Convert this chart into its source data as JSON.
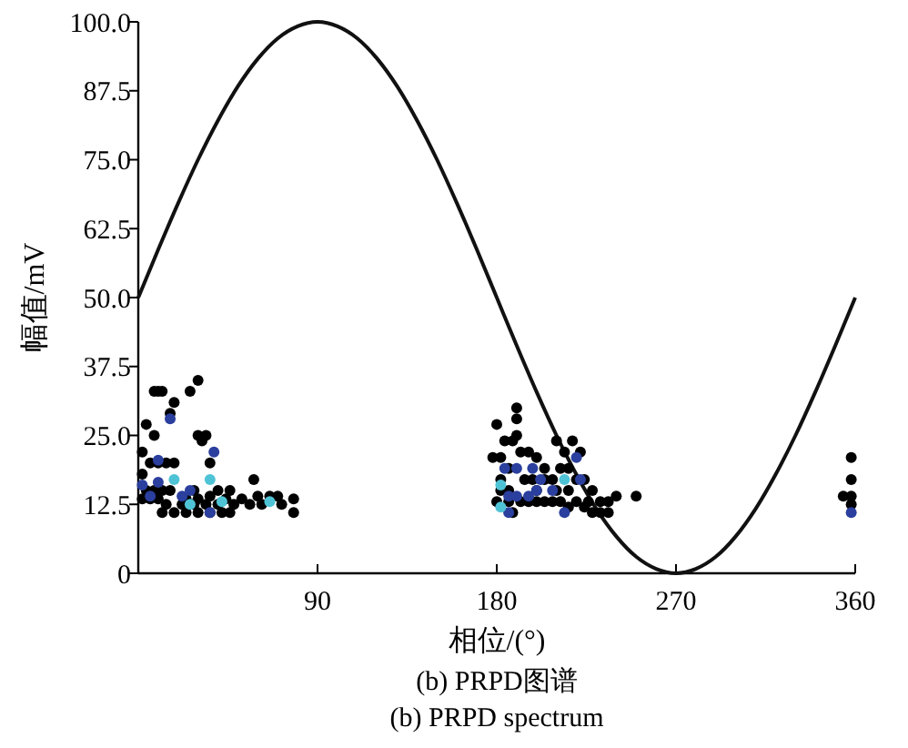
{
  "chart_data": {
    "type": "scatter",
    "xlabel": "相位/(°)",
    "ylabel": "幅值/mV",
    "annotations": [
      "(b) PRPD图谱",
      "(b) PRPD spectrum"
    ],
    "xlim": [
      0,
      360
    ],
    "xticks": [
      90,
      180,
      270,
      360
    ],
    "ylim": [
      0,
      100
    ],
    "yticks": [
      0,
      {
        "value": 12.5,
        "label": "12.5"
      },
      {
        "value": 25,
        "label": "25.0"
      },
      {
        "value": 37.5,
        "label": "37.5"
      },
      {
        "value": 50,
        "label": "50.0"
      },
      {
        "value": 62.5,
        "label": "62.5"
      },
      {
        "value": 75,
        "label": "75.0"
      },
      {
        "value": 87.5,
        "label": "87.5"
      },
      {
        "value": 100,
        "label": "100.0"
      }
    ],
    "grid": false,
    "marker": "circle",
    "series": [
      {
        "type": "line",
        "color": "#111111",
        "marker": "none",
        "x": [
          0,
          10,
          20,
          30,
          40,
          50,
          60,
          70,
          80,
          90,
          100,
          110,
          120,
          130,
          140,
          150,
          160,
          170,
          180,
          190,
          200,
          210,
          220,
          230,
          240,
          250,
          260,
          270,
          280,
          290,
          300,
          310,
          320,
          330,
          340,
          350,
          360
        ],
        "values": [
          50,
          58.7,
          67.1,
          75,
          82.1,
          88.3,
          93.3,
          97,
          99.2,
          100,
          99.2,
          97,
          93.3,
          88.3,
          82.1,
          75,
          67.1,
          58.7,
          50,
          41.3,
          32.9,
          25,
          17.9,
          11.7,
          6.7,
          3,
          0.8,
          0,
          0.8,
          3,
          6.7,
          11.7,
          17.9,
          25,
          32.9,
          41.3,
          50
        ]
      },
      {
        "color": "#000000",
        "x": [
          2,
          4,
          8,
          2,
          6,
          10,
          14,
          4,
          8,
          12,
          16,
          2,
          6,
          10,
          14,
          18,
          12,
          24,
          30,
          36,
          42,
          46,
          22,
          28,
          34,
          40,
          48,
          56,
          62,
          72,
          78,
          78,
          52,
          60,
          66,
          70,
          36,
          40,
          46,
          58,
          36,
          30,
          34,
          32,
          8,
          10,
          12,
          16,
          18,
          26,
          30,
          18,
          28,
          24,
          30,
          44,
          178,
          182,
          180,
          184,
          188,
          190,
          190,
          190,
          192,
          196,
          200,
          186,
          182,
          182,
          186,
          180,
          186,
          192,
          196,
          200,
          204,
          208,
          212,
          216,
          220,
          224,
          228,
          232,
          236,
          236,
          240,
          250,
          194,
          198,
          204,
          208,
          212,
          216,
          220,
          224,
          228,
          214,
          218,
          222,
          210,
          204,
          200,
          210,
          216,
          226,
          232,
          188,
          358,
          358,
          358,
          358,
          354
        ],
        "values": [
          22,
          27,
          25,
          18,
          20,
          20,
          20,
          15,
          15,
          15,
          15,
          13.5,
          13.5,
          13.5,
          12.5,
          11,
          11,
          11,
          11,
          11,
          11,
          11,
          12.5,
          12.5,
          12.5,
          12.5,
          12.5,
          12.5,
          12.5,
          12.5,
          11,
          13.5,
          13.5,
          14,
          14,
          14,
          14,
          15,
          15,
          17,
          20,
          25,
          25,
          24,
          33,
          33,
          33,
          29,
          31,
          33,
          35,
          20,
          15,
          13.5,
          13.5,
          13.5,
          21,
          21,
          27,
          24,
          24,
          25,
          28,
          30,
          22,
          22,
          21,
          19,
          17,
          15,
          15,
          13,
          13,
          13,
          13,
          13,
          13,
          13,
          13,
          12,
          13,
          12,
          11,
          11,
          11,
          13,
          14,
          14,
          17,
          17,
          17,
          17,
          19,
          19,
          17,
          17,
          15,
          22,
          24,
          22,
          24,
          19,
          15,
          15,
          15,
          13,
          13,
          11,
          21,
          17,
          14,
          12.5,
          14
        ]
      },
      {
        "color": "#2a3f9e",
        "x": [
          16,
          38,
          10,
          22,
          26,
          36,
          2,
          10,
          6,
          184,
          190,
          198,
          202,
          186,
          190,
          196,
          200,
          220,
          214,
          186,
          208,
          222,
          358
        ],
        "values": [
          28,
          22,
          20.5,
          14,
          15,
          11,
          16,
          16.5,
          14,
          19,
          19,
          19,
          17,
          14,
          14,
          14,
          15,
          21,
          11,
          11,
          15,
          17,
          11
        ]
      },
      {
        "color": "#4fc3d6",
        "x": [
          18,
          36,
          42,
          66,
          26,
          182,
          214,
          182
        ],
        "values": [
          17,
          17,
          13,
          13,
          12.5,
          16,
          17,
          12
        ]
      }
    ]
  }
}
